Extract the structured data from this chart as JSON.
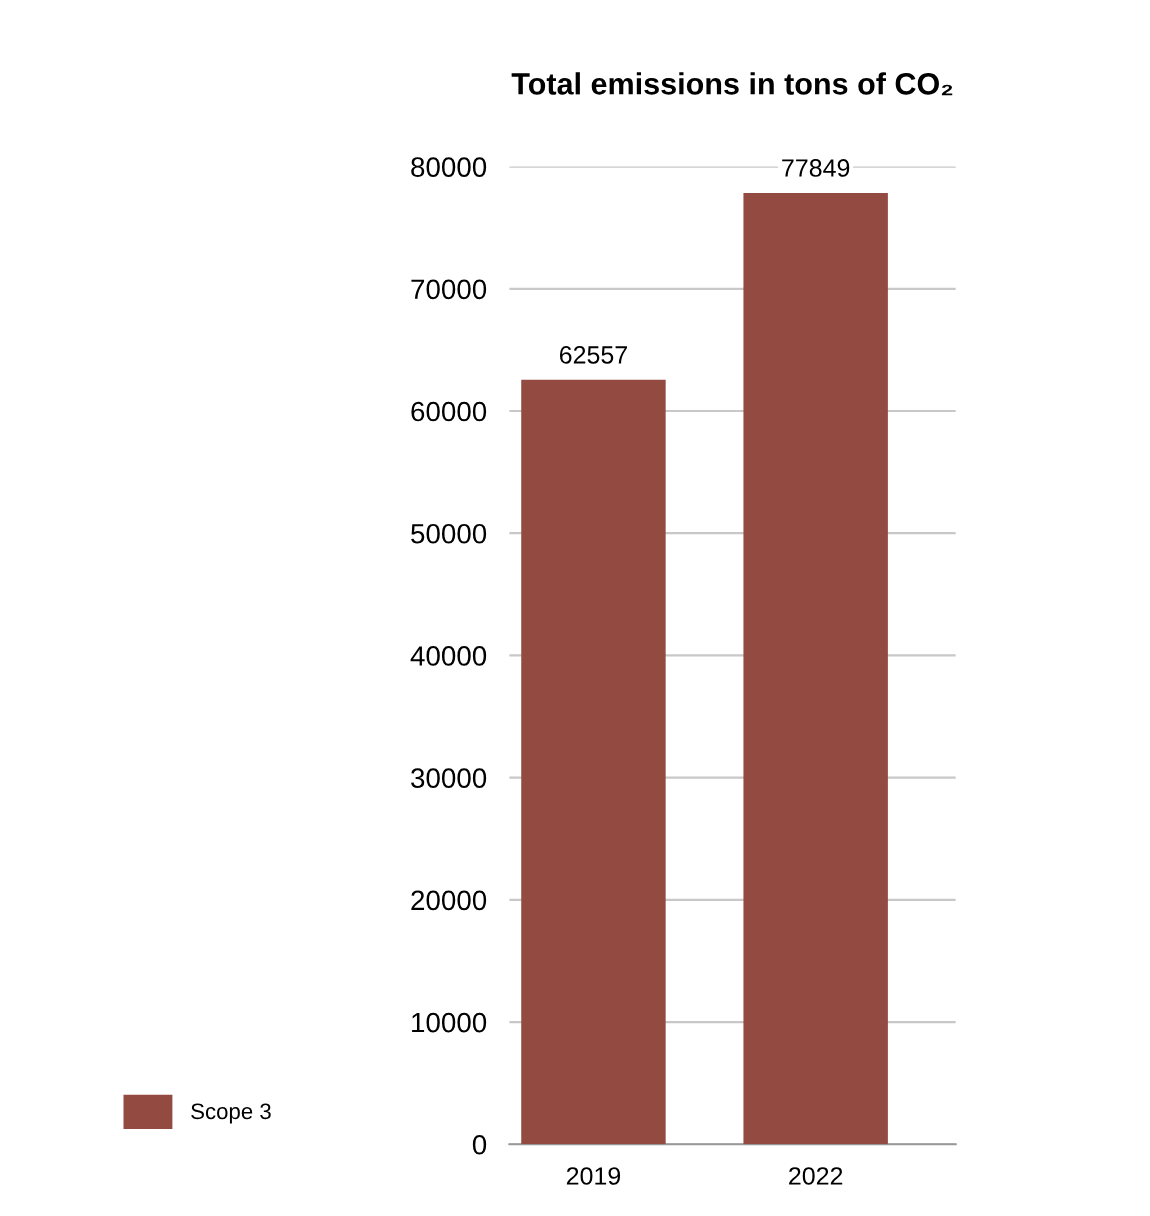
{
  "chart_data": {
    "type": "bar",
    "title": "Total emissions in tons of CO₂",
    "categories": [
      "2019",
      "2022"
    ],
    "series": [
      {
        "name": "Scope 3",
        "color": "#934a40",
        "values": [
          62557,
          77849
        ]
      }
    ],
    "ylim": [
      0,
      80000
    ],
    "yticks": [
      0,
      10000,
      20000,
      30000,
      40000,
      50000,
      60000,
      70000,
      80000
    ],
    "grid": "y",
    "legend": "bottom left",
    "data_labels": true
  }
}
